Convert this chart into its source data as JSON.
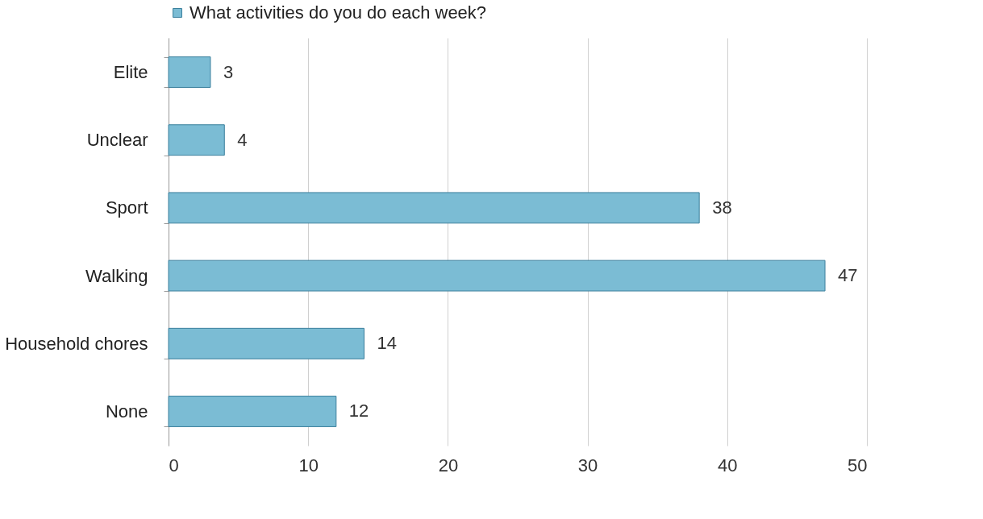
{
  "chart_data": {
    "type": "bar",
    "orientation": "horizontal",
    "categories": [
      "Elite",
      "Unclear",
      "Sport",
      "Walking",
      "Household chores",
      "None"
    ],
    "series": [
      {
        "name": "What activities do you do each week?",
        "color": "#7bbcd4",
        "values": [
          3,
          4,
          38,
          47,
          14,
          12
        ]
      }
    ],
    "xlim": [
      0,
      50
    ],
    "xticks": [
      0,
      10,
      20,
      30,
      40,
      50
    ],
    "grid": "x",
    "legend": "top",
    "data_labels": true
  }
}
